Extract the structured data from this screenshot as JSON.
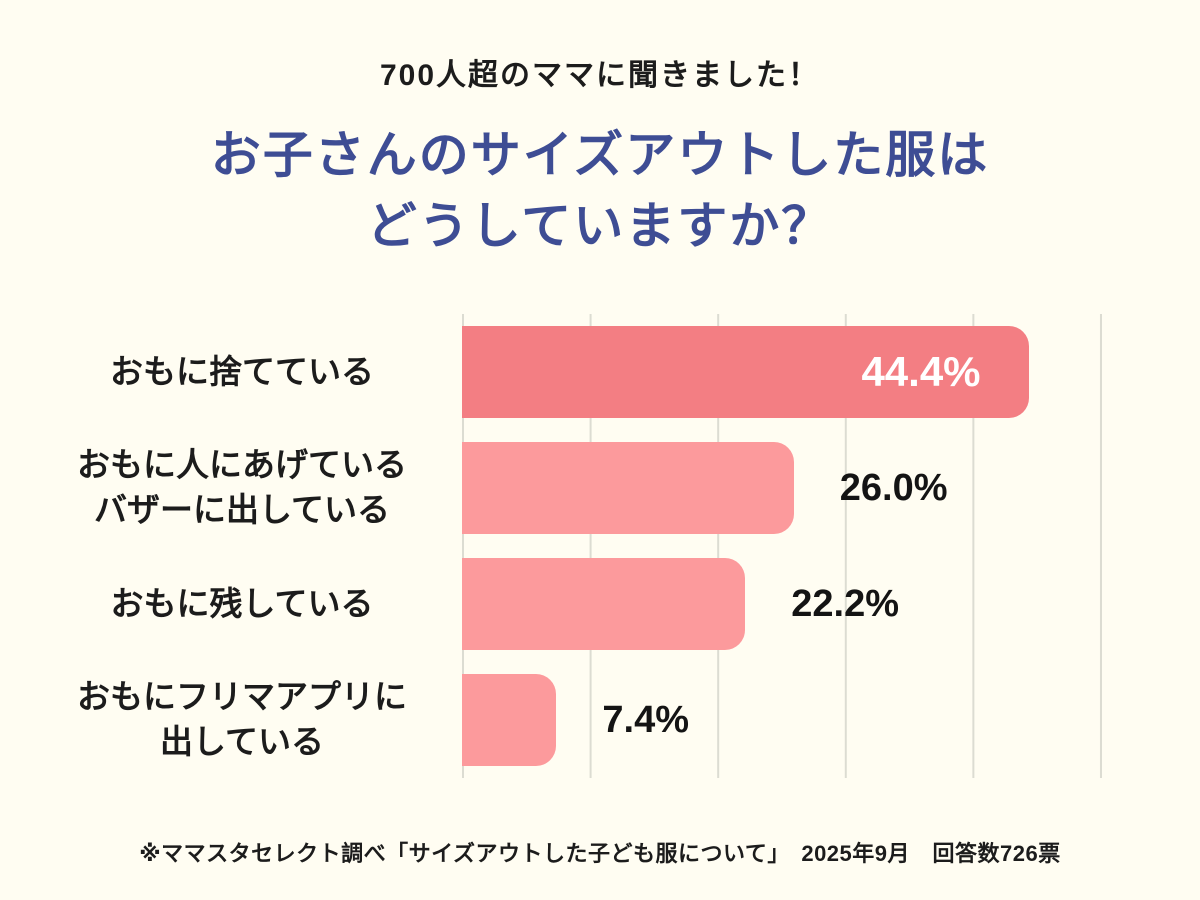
{
  "page": {
    "background": "#FFFDF2",
    "subtitle": "700人超のママに聞きました！",
    "title_line1": "お子さんのサイズアウトした服は",
    "title_line2": "どうしていますか？",
    "footnote": "※ママスタセレクト調べ「サイズアウトした子ども服について」　2025年9月　回答数726票"
  },
  "colors": {
    "title": "#3E4D94",
    "text": "#1C1C1C",
    "bar_primary": "#F37E83",
    "bar_secondary": "#FC9A9C",
    "gridline": "#DCDCD2",
    "value_inside": "#FFFFFF",
    "value_outside": "#141414"
  },
  "chart_data": {
    "type": "bar",
    "orientation": "horizontal",
    "title": "お子さんのサイズアウトした服はどうしていますか？",
    "subtitle": "700人超のママに聞きました！",
    "categories": [
      "おもに捨てている",
      "おもに人にあげている\nバザーに出している",
      "おもに残している",
      "おもにフリマアプリに\n出している"
    ],
    "values": [
      44.4,
      26.0,
      22.2,
      7.4
    ],
    "value_labels": [
      "44.4%",
      "26.0%",
      "22.2%",
      "7.4%"
    ],
    "xlim": [
      0,
      50
    ],
    "gridline_interval_pct": 10,
    "grid": true,
    "legend": false,
    "bar_colors": [
      "#F37E83",
      "#FC9A9C",
      "#FC9A9C",
      "#FC9A9C"
    ],
    "value_label_placement": [
      "inside-end",
      "outside-end",
      "outside-end",
      "outside-end"
    ],
    "source_note": "※ママスタセレクト調べ「サイズアウトした子ども服について」　2025年9月　回答数726票"
  }
}
